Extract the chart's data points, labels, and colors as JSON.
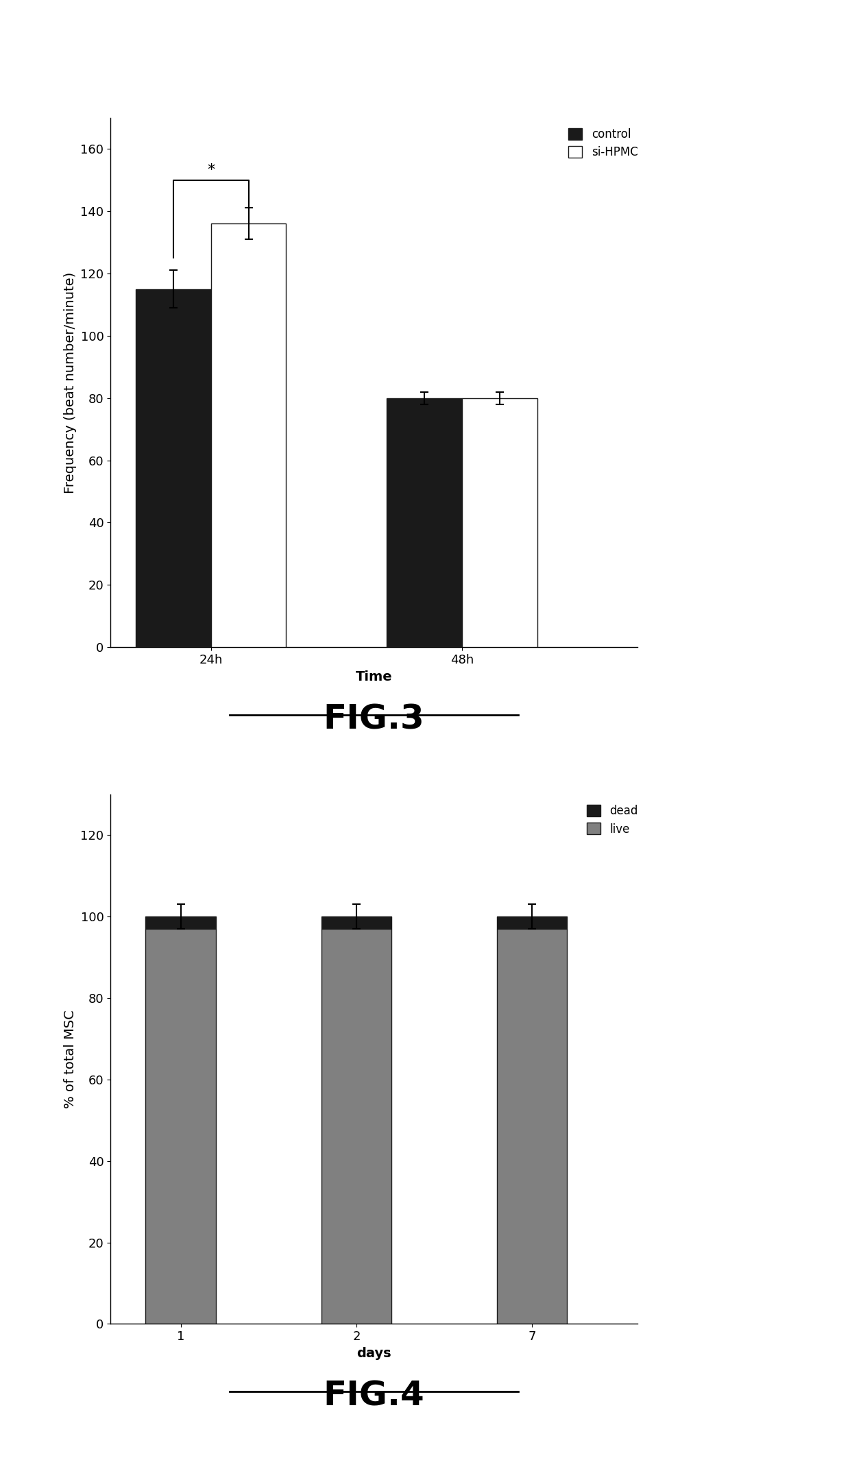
{
  "fig3": {
    "groups": [
      "24h",
      "48h"
    ],
    "control_values": [
      115,
      80
    ],
    "sihpmc_values": [
      136,
      80
    ],
    "control_errors": [
      6,
      2
    ],
    "sihpmc_errors": [
      5,
      2
    ],
    "control_color": "#1a1a1a",
    "sihpmc_color": "#ffffff",
    "ylabel": "Frequency (beat number/minute)",
    "xlabel": "Time",
    "yticks": [
      0,
      20,
      40,
      60,
      80,
      100,
      120,
      140,
      160
    ],
    "ylim": [
      0,
      170
    ],
    "bar_width": 0.3,
    "legend_labels": [
      "control",
      "si-HPMC"
    ],
    "figure_label": "FIG.3",
    "edgecolor": "#1a1a1a"
  },
  "fig4": {
    "categories": [
      "1",
      "2",
      "7"
    ],
    "dead_values": [
      3,
      3,
      3
    ],
    "live_values": [
      97,
      97,
      97
    ],
    "dead_errors": [
      3,
      3,
      3
    ],
    "dead_color": "#1a1a1a",
    "live_color": "#808080",
    "ylabel": "% of total MSC",
    "xlabel": "days",
    "yticks": [
      0,
      20,
      40,
      60,
      80,
      100,
      120
    ],
    "ylim": [
      0,
      130
    ],
    "bar_width": 0.4,
    "legend_labels": [
      "dead",
      "live"
    ],
    "figure_label": "FIG.4",
    "edgecolor": "#1a1a1a"
  },
  "background_color": "#ffffff",
  "tick_fontsize": 13,
  "label_fontsize": 14,
  "legend_fontsize": 12,
  "figlabel_fontsize": 36
}
